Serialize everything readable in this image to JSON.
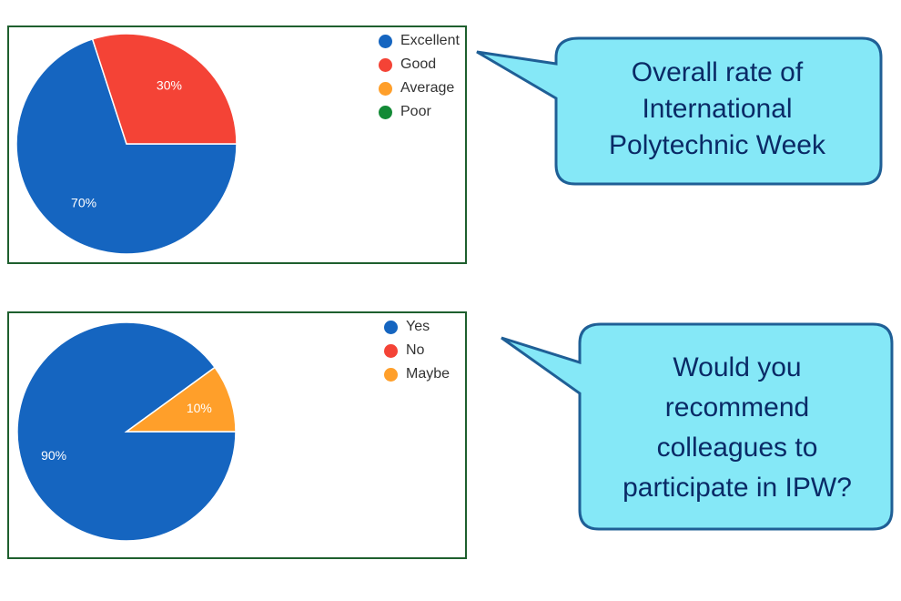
{
  "colors": {
    "blue": "#1565c0",
    "red": "#f44336",
    "orange": "#ff9f2a",
    "green": "#138a36",
    "bubble_fill": "#85e8f7",
    "bubble_stroke": "#1f5f96",
    "frame": "#1e5f2e"
  },
  "chart_data": [
    {
      "type": "pie",
      "categories": [
        "Excellent",
        "Good",
        "Average",
        "Poor"
      ],
      "values": [
        70,
        30,
        0,
        0
      ],
      "labels": [
        "70%",
        "30%",
        "",
        ""
      ],
      "colors": [
        "#1565c0",
        "#f44336",
        "#ff9f2a",
        "#138a36"
      ],
      "legend_position": "top-right"
    },
    {
      "type": "pie",
      "categories": [
        "Yes",
        "No",
        "Maybe"
      ],
      "values": [
        90,
        0,
        10
      ],
      "labels": [
        "90%",
        "",
        "10%"
      ],
      "colors": [
        "#1565c0",
        "#f44336",
        "#ff9f2a"
      ],
      "legend_position": "top-right"
    }
  ],
  "callouts": [
    {
      "lines": [
        "Overall rate of",
        "International",
        "Polytechnic Week"
      ]
    },
    {
      "lines": [
        "Would you",
        "recommend",
        "colleagues to",
        "participate in IPW?"
      ]
    }
  ]
}
